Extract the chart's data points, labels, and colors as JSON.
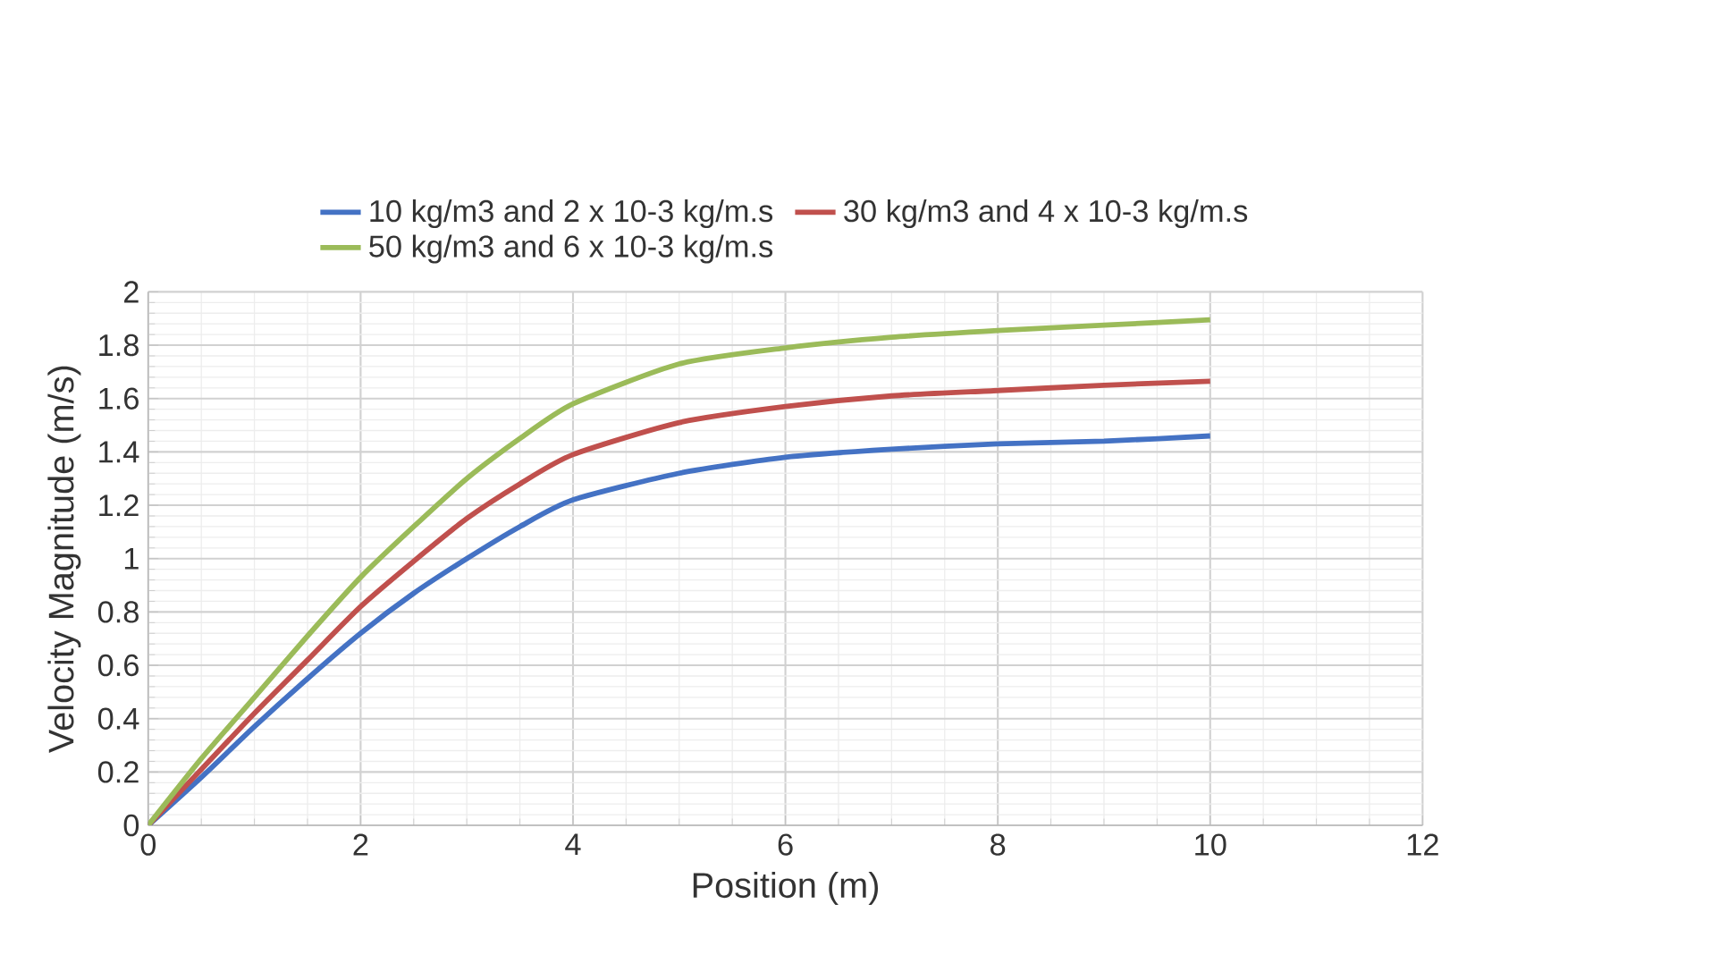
{
  "chart_data": {
    "type": "line",
    "xlabel": "Position (m)",
    "ylabel": "Velocity Magnitude (m/s)",
    "xlim": [
      0,
      12
    ],
    "ylim": [
      0,
      2
    ],
    "xticks": [
      0,
      2,
      4,
      6,
      8,
      10,
      12
    ],
    "yticks": [
      0,
      0.2,
      0.4,
      0.6,
      0.8,
      1,
      1.2,
      1.4,
      1.6,
      1.8,
      2
    ],
    "grid": true,
    "legend": "top",
    "marker": "none",
    "line_style": "solid",
    "x": [
      0,
      0.5,
      1,
      1.5,
      2,
      2.5,
      3,
      3.5,
      4,
      5,
      6,
      7,
      8,
      9,
      10
    ],
    "series": [
      {
        "name": "10 kg/m3 and 2 x 10-3 kg/m.s",
        "color": "#4472c4",
        "values": [
          0,
          0.18,
          0.37,
          0.55,
          0.72,
          0.87,
          1.0,
          1.12,
          1.22,
          1.32,
          1.38,
          1.41,
          1.43,
          1.44,
          1.46
        ]
      },
      {
        "name": "30 kg/m3 and 4 x 10-3 kg/m.s",
        "color": "#c0504d",
        "values": [
          0,
          0.21,
          0.42,
          0.62,
          0.82,
          0.99,
          1.15,
          1.28,
          1.39,
          1.51,
          1.57,
          1.61,
          1.63,
          1.65,
          1.665
        ]
      },
      {
        "name": "50 kg/m3 and 6 x 10-3 kg/m.s",
        "color": "#9bbb59",
        "values": [
          0,
          0.25,
          0.48,
          0.71,
          0.93,
          1.12,
          1.3,
          1.45,
          1.58,
          1.73,
          1.79,
          1.83,
          1.855,
          1.875,
          1.895
        ]
      }
    ]
  }
}
